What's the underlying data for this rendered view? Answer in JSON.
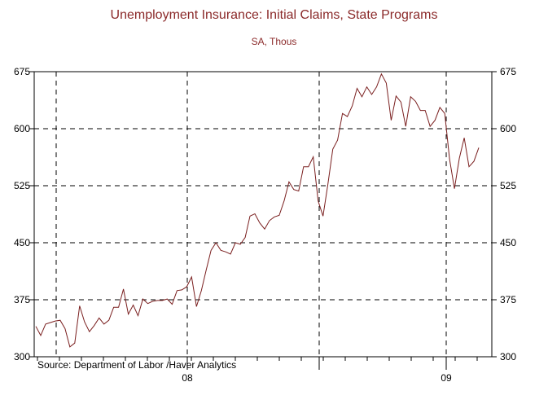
{
  "chart_data": {
    "type": "line",
    "title": "Unemployment Insurance: Initial Claims, State Programs",
    "subtitle": "SA, Thous",
    "source": "Source:  Department of Labor /Haver Analytics",
    "ylim": [
      300,
      675
    ],
    "yticks": [
      "675",
      "600",
      "525",
      "450",
      "375",
      "300"
    ],
    "ytick_values": [
      675,
      600,
      525,
      450,
      375,
      300
    ],
    "xtick_labels": [
      "08",
      "09"
    ],
    "grid": "dashed",
    "series": [
      {
        "color": "#7a1f1f",
        "values": [
          340,
          328,
          343,
          345,
          347,
          348,
          337,
          313,
          318,
          367,
          346,
          333,
          341,
          351,
          343,
          348,
          365,
          365,
          389,
          356,
          368,
          354,
          376,
          370,
          373,
          374,
          374,
          376,
          369,
          387,
          388,
          392,
          405,
          366,
          387,
          414,
          440,
          450,
          440,
          438,
          435,
          450,
          448,
          457,
          485,
          488,
          476,
          468,
          479,
          484,
          486,
          505,
          530,
          520,
          518,
          550,
          550,
          563,
          505,
          485,
          527,
          573,
          585,
          620,
          616,
          630,
          653,
          642,
          655,
          645,
          655,
          672,
          660,
          611,
          643,
          635,
          603,
          642,
          636,
          624,
          624,
          603,
          611,
          628,
          620,
          560,
          521,
          561,
          588,
          550,
          557,
          575
        ]
      }
    ]
  }
}
